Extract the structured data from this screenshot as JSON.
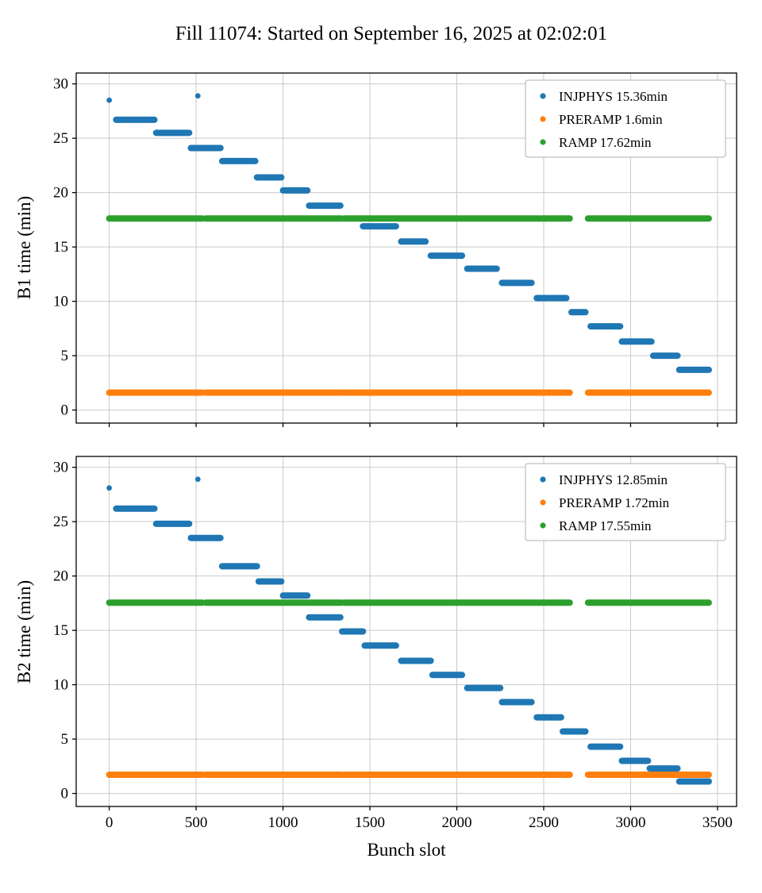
{
  "title": "Fill 11074: Started on September 16, 2025 at 02:02:01",
  "xlabel": "Bunch slot",
  "chart_data": [
    {
      "type": "scatter",
      "name": "B1",
      "ylabel": "B1 time (min)",
      "xlim": [
        -190,
        3610
      ],
      "ylim": [
        -1.2,
        31.0
      ],
      "x_ticks": [
        0,
        500,
        1000,
        1500,
        2000,
        2500,
        3000,
        3500
      ],
      "y_ticks": [
        0,
        5,
        10,
        15,
        20,
        25,
        30
      ],
      "grid": true,
      "legend_position": "upper right",
      "series": [
        {
          "name": "INJPHYS",
          "label": "INJPHYS 15.36min",
          "color": "#1f77b4",
          "points": [
            [
              0,
              28.5
            ],
            [
              510,
              28.9
            ]
          ],
          "segments": [
            [
              40,
              260,
              26.7
            ],
            [
              270,
              460,
              25.5
            ],
            [
              470,
              640,
              24.1
            ],
            [
              650,
              840,
              22.9
            ],
            [
              850,
              990,
              21.4
            ],
            [
              1000,
              1140,
              20.2
            ],
            [
              1150,
              1330,
              18.8
            ],
            [
              1460,
              1650,
              16.9
            ],
            [
              1680,
              1820,
              15.5
            ],
            [
              1850,
              2030,
              14.2
            ],
            [
              2060,
              2230,
              13.0
            ],
            [
              2260,
              2430,
              11.7
            ],
            [
              2460,
              2630,
              10.3
            ],
            [
              2660,
              2740,
              9.0
            ],
            [
              2770,
              2940,
              7.7
            ],
            [
              2950,
              3120,
              6.3
            ],
            [
              3130,
              3270,
              5.0
            ],
            [
              3280,
              3450,
              3.7
            ]
          ]
        },
        {
          "name": "PRERAMP",
          "label": "PRERAMP 1.6min",
          "color": "#ff7f0e",
          "points": [],
          "segments": [
            [
              0,
              535,
              1.6
            ],
            [
              555,
              1335,
              1.6
            ],
            [
              1350,
              2650,
              1.6
            ],
            [
              2755,
              3450,
              1.6
            ]
          ]
        },
        {
          "name": "RAMP",
          "label": "RAMP 17.62min",
          "color": "#2ca02c",
          "points": [],
          "segments": [
            [
              0,
              535,
              17.62
            ],
            [
              555,
              1335,
              17.62
            ],
            [
              1350,
              2650,
              17.62
            ],
            [
              2755,
              3450,
              17.62
            ]
          ]
        }
      ]
    },
    {
      "type": "scatter",
      "name": "B2",
      "ylabel": "B2 time (min)",
      "xlim": [
        -190,
        3610
      ],
      "ylim": [
        -1.2,
        31.0
      ],
      "x_ticks": [
        0,
        500,
        1000,
        1500,
        2000,
        2500,
        3000,
        3500
      ],
      "y_ticks": [
        0,
        5,
        10,
        15,
        20,
        25,
        30
      ],
      "grid": true,
      "legend_position": "upper right",
      "series": [
        {
          "name": "INJPHYS",
          "label": "INJPHYS 12.85min",
          "color": "#1f77b4",
          "points": [
            [
              0,
              28.1
            ],
            [
              510,
              28.9
            ]
          ],
          "segments": [
            [
              40,
              260,
              26.2
            ],
            [
              270,
              460,
              24.8
            ],
            [
              470,
              640,
              23.5
            ],
            [
              650,
              850,
              20.9
            ],
            [
              860,
              990,
              19.5
            ],
            [
              1000,
              1140,
              18.2
            ],
            [
              1150,
              1330,
              16.2
            ],
            [
              1340,
              1460,
              14.9
            ],
            [
              1470,
              1650,
              13.6
            ],
            [
              1680,
              1850,
              12.2
            ],
            [
              1860,
              2030,
              10.9
            ],
            [
              2060,
              2250,
              9.7
            ],
            [
              2260,
              2430,
              8.4
            ],
            [
              2460,
              2600,
              7.0
            ],
            [
              2610,
              2740,
              5.7
            ],
            [
              2770,
              2940,
              4.3
            ],
            [
              2950,
              3100,
              3.0
            ],
            [
              3110,
              3270,
              2.3
            ],
            [
              3280,
              3450,
              1.1
            ]
          ]
        },
        {
          "name": "PRERAMP",
          "label": "PRERAMP 1.72min",
          "color": "#ff7f0e",
          "points": [],
          "segments": [
            [
              0,
              535,
              1.72
            ],
            [
              555,
              1335,
              1.72
            ],
            [
              1350,
              2650,
              1.72
            ],
            [
              2755,
              3450,
              1.72
            ]
          ]
        },
        {
          "name": "RAMP",
          "label": "RAMP 17.55min",
          "color": "#2ca02c",
          "points": [],
          "segments": [
            [
              0,
              535,
              17.55
            ],
            [
              555,
              1335,
              17.55
            ],
            [
              1350,
              2650,
              17.55
            ],
            [
              2755,
              3450,
              17.55
            ]
          ]
        }
      ]
    }
  ],
  "style": {
    "grid_color": "#c9c9c9",
    "spine_color": "#000000",
    "legend_border_color": "#b0b0b0",
    "background": "#ffffff"
  }
}
